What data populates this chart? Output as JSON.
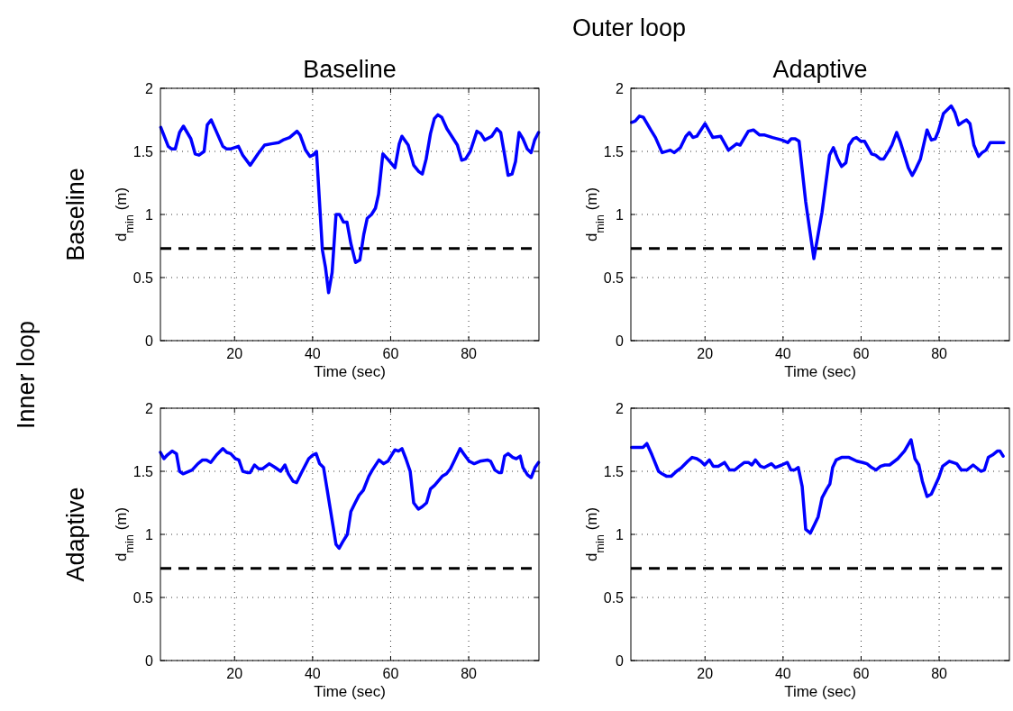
{
  "chart_data": [
    {
      "type": "line",
      "title": "Baseline",
      "xlabel": "Time (sec)",
      "ylabel": "d$_{min}$ (m)",
      "annotations": [
        "Outer loop",
        "Inner loop",
        "Baseline"
      ],
      "xlim": [
        1,
        98
      ],
      "ylim": [
        0,
        2
      ],
      "xticks": [
        20,
        40,
        60,
        80
      ],
      "yticks": [
        0,
        0.5,
        1,
        1.5,
        2
      ],
      "grid": true,
      "x": [
        1.1,
        3.0,
        3.8,
        4.8,
        5.9,
        6.9,
        8.8,
        9.9,
        10.9,
        12.2,
        13.0,
        14.0,
        15.3,
        17.0,
        17.9,
        19.1,
        21.0,
        22.1,
        24.0,
        26.0,
        27.7,
        29.4,
        31.3,
        32.4,
        34.1,
        36.0,
        36.8,
        38.2,
        39.3,
        40.1,
        41.0,
        42.5,
        43.3,
        44.1,
        45.0,
        46.0,
        46.9,
        47.9,
        48.8,
        49.8,
        51.0,
        52.1,
        53.1,
        54.0,
        55.1,
        56.1,
        56.9,
        58.0,
        59.2,
        61.1,
        62.2,
        62.9,
        64.5,
        65.9,
        67.2,
        68.1,
        69.1,
        70.2,
        71.2,
        72.1,
        73.1,
        74.4,
        77.1,
        78.2,
        79.2,
        80.4,
        82.1,
        83.1,
        84.1,
        85.9,
        87.2,
        88.2,
        89.1,
        90.1,
        91.1,
        92.0,
        92.9,
        93.9,
        95.0,
        96.0,
        96.9,
        97.9
      ],
      "series": [
        {
          "color": "#0000ff",
          "values": [
            1.69,
            1.54,
            1.52,
            1.52,
            1.65,
            1.7,
            1.6,
            1.48,
            1.47,
            1.5,
            1.71,
            1.75,
            1.66,
            1.54,
            1.52,
            1.52,
            1.54,
            1.47,
            1.39,
            1.48,
            1.55,
            1.56,
            1.57,
            1.59,
            1.61,
            1.66,
            1.63,
            1.51,
            1.46,
            1.47,
            1.5,
            0.72,
            0.58,
            0.38,
            0.54,
            1.0,
            1.0,
            0.94,
            0.94,
            0.77,
            0.62,
            0.64,
            0.84,
            0.97,
            1.0,
            1.05,
            1.16,
            1.48,
            1.44,
            1.37,
            1.56,
            1.62,
            1.55,
            1.39,
            1.34,
            1.32,
            1.44,
            1.64,
            1.76,
            1.79,
            1.77,
            1.68,
            1.55,
            1.43,
            1.44,
            1.5,
            1.66,
            1.64,
            1.59,
            1.62,
            1.68,
            1.65,
            1.49,
            1.31,
            1.32,
            1.42,
            1.65,
            1.6,
            1.52,
            1.49,
            1.59,
            1.65
          ]
        }
      ],
      "ref_lines": [
        {
          "axis": "y",
          "value": 0.73,
          "color": "#000000",
          "line_style": "dashed"
        }
      ]
    },
    {
      "type": "line",
      "title": "Adaptive",
      "xlabel": "Time (sec)",
      "ylabel": "d$_{min}$ (m)",
      "xlim": [
        1,
        98
      ],
      "ylim": [
        0,
        2
      ],
      "xticks": [
        20,
        40,
        60,
        80
      ],
      "yticks": [
        0,
        0.5,
        1,
        1.5,
        2
      ],
      "grid": true,
      "x": [
        1.2,
        2.1,
        3.2,
        4.2,
        6.1,
        7.3,
        9.0,
        11.1,
        12.1,
        13.7,
        15.1,
        16.0,
        16.9,
        17.9,
        20.0,
        22.0,
        24.0,
        26.0,
        28.1,
        29.0,
        31.1,
        32.4,
        34.0,
        35.3,
        37.3,
        39.7,
        41.2,
        42.1,
        43.1,
        44.1,
        45.8,
        47.9,
        50.0,
        51.9,
        52.9,
        54.0,
        55.0,
        56.1,
        56.9,
        58.0,
        58.8,
        59.9,
        60.9,
        62.7,
        63.7,
        64.9,
        65.8,
        67.2,
        67.9,
        69.1,
        70.1,
        72.1,
        73.1,
        74.0,
        75.2,
        76.9,
        78.0,
        79.0,
        79.8,
        81.1,
        82.1,
        83.1,
        84.0,
        85.0,
        85.9,
        87.0,
        87.9,
        88.9,
        90.1,
        91.0,
        92.0,
        93.1,
        94.7,
        96.6
      ],
      "series": [
        {
          "color": "#0000ff",
          "values": [
            1.73,
            1.74,
            1.78,
            1.77,
            1.67,
            1.61,
            1.49,
            1.51,
            1.49,
            1.53,
            1.62,
            1.65,
            1.61,
            1.62,
            1.72,
            1.61,
            1.62,
            1.51,
            1.56,
            1.55,
            1.66,
            1.67,
            1.63,
            1.63,
            1.61,
            1.59,
            1.57,
            1.6,
            1.6,
            1.58,
            1.1,
            0.65,
            1.02,
            1.47,
            1.53,
            1.44,
            1.38,
            1.41,
            1.55,
            1.6,
            1.61,
            1.58,
            1.58,
            1.48,
            1.47,
            1.44,
            1.44,
            1.51,
            1.55,
            1.65,
            1.57,
            1.37,
            1.31,
            1.36,
            1.44,
            1.67,
            1.59,
            1.6,
            1.66,
            1.8,
            1.83,
            1.86,
            1.81,
            1.71,
            1.73,
            1.75,
            1.72,
            1.55,
            1.46,
            1.49,
            1.51,
            1.57,
            1.57,
            1.57
          ]
        }
      ],
      "ref_lines": [
        {
          "axis": "y",
          "value": 0.73,
          "color": "#000000",
          "line_style": "dashed"
        }
      ]
    },
    {
      "type": "line",
      "xlabel": "Time (sec)",
      "ylabel": "d$_{min}$ (m)",
      "annotations": [
        "Adaptive"
      ],
      "xlim": [
        1,
        98
      ],
      "ylim": [
        0,
        2
      ],
      "xticks": [
        20,
        40,
        60,
        80
      ],
      "yticks": [
        0,
        0.5,
        1,
        1.5,
        2
      ],
      "grid": true,
      "x": [
        1.0,
        1.9,
        2.8,
        4.0,
        5.1,
        5.9,
        6.8,
        9.1,
        10.6,
        11.8,
        12.8,
        13.9,
        15.4,
        17.0,
        18.0,
        19.0,
        20.2,
        21.1,
        22.1,
        23.2,
        24.0,
        25.1,
        26.2,
        27.2,
        28.9,
        30.4,
        31.8,
        32.9,
        33.8,
        35.0,
        35.9,
        37.0,
        39.0,
        40.1,
        40.9,
        41.8,
        42.8,
        43.7,
        44.9,
        46.0,
        46.8,
        47.7,
        48.9,
        49.8,
        50.9,
        51.9,
        53.0,
        54.4,
        55.3,
        57.0,
        58.2,
        59.3,
        60.1,
        61.1,
        62.0,
        62.9,
        63.9,
        65.0,
        65.9,
        67.1,
        68.1,
        69.2,
        70.2,
        71.3,
        73.2,
        74.3,
        75.3,
        76.4,
        77.8,
        78.7,
        80.1,
        81.4,
        82.9,
        84.8,
        85.6,
        86.7,
        87.7,
        88.4,
        89.2,
        90.1,
        91.3,
        92.2,
        93.2,
        93.9,
        95.1,
        96.0,
        97.0,
        97.9
      ],
      "series": [
        {
          "color": "#0000ff",
          "values": [
            1.65,
            1.6,
            1.63,
            1.66,
            1.64,
            1.5,
            1.48,
            1.51,
            1.56,
            1.59,
            1.59,
            1.57,
            1.63,
            1.68,
            1.65,
            1.64,
            1.6,
            1.59,
            1.5,
            1.49,
            1.49,
            1.55,
            1.52,
            1.52,
            1.56,
            1.53,
            1.5,
            1.55,
            1.48,
            1.42,
            1.41,
            1.48,
            1.6,
            1.63,
            1.64,
            1.56,
            1.53,
            1.36,
            1.13,
            0.92,
            0.89,
            0.94,
            1.0,
            1.18,
            1.25,
            1.31,
            1.35,
            1.46,
            1.51,
            1.59,
            1.56,
            1.58,
            1.62,
            1.67,
            1.66,
            1.68,
            1.6,
            1.5,
            1.25,
            1.2,
            1.22,
            1.25,
            1.36,
            1.39,
            1.46,
            1.48,
            1.52,
            1.59,
            1.68,
            1.64,
            1.58,
            1.56,
            1.58,
            1.59,
            1.58,
            1.51,
            1.49,
            1.49,
            1.62,
            1.64,
            1.61,
            1.6,
            1.62,
            1.53,
            1.47,
            1.45,
            1.53,
            1.57
          ]
        }
      ],
      "ref_lines": [
        {
          "axis": "y",
          "value": 0.73,
          "color": "#000000",
          "line_style": "dashed"
        }
      ]
    },
    {
      "type": "line",
      "xlabel": "Time (sec)",
      "ylabel": "d$_{min}$ (m)",
      "xlim": [
        1,
        98
      ],
      "ylim": [
        0,
        2
      ],
      "xticks": [
        20,
        40,
        60,
        80
      ],
      "yticks": [
        0,
        0.5,
        1,
        1.5,
        2
      ],
      "grid": true,
      "x": [
        1.2,
        2.5,
        4.1,
        5.1,
        6.4,
        8.1,
        9.0,
        10.2,
        11.3,
        12.7,
        14.0,
        15.6,
        16.7,
        17.9,
        18.9,
        19.9,
        21.1,
        22.1,
        23.4,
        25.0,
        26.3,
        27.6,
        28.8,
        30.1,
        31.1,
        32.0,
        32.9,
        34.2,
        35.2,
        37.0,
        38.0,
        39.7,
        41.1,
        42.0,
        42.9,
        43.9,
        44.9,
        45.8,
        47.0,
        48.1,
        49.0,
        50.0,
        51.2,
        52.0,
        52.7,
        53.6,
        55.0,
        56.9,
        58.9,
        60.4,
        61.5,
        62.7,
        63.8,
        65.0,
        66.1,
        67.3,
        69.4,
        71.1,
        72.8,
        73.8,
        74.8,
        75.7,
        76.9,
        78.0,
        79.9,
        80.9,
        82.6,
        84.5,
        85.7,
        87.1,
        88.7,
        90.7,
        91.6,
        92.6,
        93.7,
        94.9,
        95.6,
        96.4
      ],
      "series": [
        {
          "color": "#0000ff",
          "values": [
            1.69,
            1.69,
            1.69,
            1.72,
            1.63,
            1.5,
            1.48,
            1.46,
            1.46,
            1.5,
            1.53,
            1.58,
            1.61,
            1.6,
            1.58,
            1.55,
            1.59,
            1.54,
            1.54,
            1.57,
            1.51,
            1.51,
            1.54,
            1.57,
            1.57,
            1.55,
            1.59,
            1.54,
            1.53,
            1.56,
            1.53,
            1.55,
            1.57,
            1.51,
            1.51,
            1.53,
            1.38,
            1.04,
            1.01,
            1.08,
            1.14,
            1.29,
            1.36,
            1.4,
            1.53,
            1.59,
            1.61,
            1.61,
            1.58,
            1.57,
            1.56,
            1.53,
            1.51,
            1.54,
            1.55,
            1.55,
            1.6,
            1.66,
            1.75,
            1.6,
            1.55,
            1.42,
            1.3,
            1.32,
            1.45,
            1.54,
            1.58,
            1.56,
            1.51,
            1.51,
            1.55,
            1.5,
            1.51,
            1.61,
            1.63,
            1.66,
            1.66,
            1.62
          ]
        }
      ],
      "ref_lines": [
        {
          "axis": "y",
          "value": 0.73,
          "color": "#000000",
          "line_style": "dashed"
        }
      ]
    }
  ]
}
